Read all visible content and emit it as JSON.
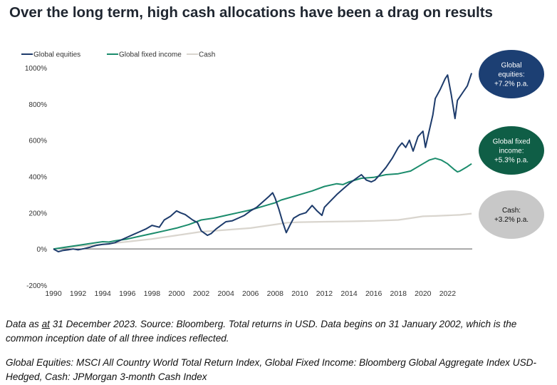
{
  "title": "Over the long term, high cash allocations have been a drag on results",
  "colors": {
    "equities": "#1d3b6b",
    "fixed_income": "#1b8c6c",
    "cash": "#d9d5ce",
    "equities_bubble": "#1c3f73",
    "fixed_income_bubble": "#0f5e46",
    "cash_bubble": "#c8c8c8",
    "axis_text": "#333333",
    "zero_line": "#555555"
  },
  "bubbles": [
    {
      "id": "equities",
      "line1": "Global",
      "line2": "equities:",
      "line3": "+7.2% p.a."
    },
    {
      "id": "fixed_income",
      "line1": "Global fixed",
      "line2": "income:",
      "line3": "+5.3% p.a."
    },
    {
      "id": "cash",
      "line1": "Cash:",
      "line2": "+3.2% p.a.",
      "line3": ""
    }
  ],
  "notes": {
    "note1_pre": "Data as ",
    "note1_at": "at",
    "note1_post": " 31 December 2023. Source: Bloomberg. Total returns in USD. Data begins on 31 January 2002, which is the common inception date of all three indices reflected.",
    "note2": "Global Equities: MSCI All Country World Total Return Index, Global Fixed Income: Bloomberg Global Aggregate Index USD-Hedged, Cash: JPMorgan 3-month Cash Index"
  },
  "chart_data": {
    "type": "line",
    "title": "Over the long term, high cash allocations have been a drag on results",
    "xlabel": "",
    "ylabel": "",
    "xlim": [
      1990,
      2024
    ],
    "ylim": [
      -200,
      1000
    ],
    "x_ticks": [
      "1990",
      "1992",
      "1994",
      "1996",
      "1998",
      "2000",
      "2002",
      "2004",
      "2006",
      "2008",
      "2010",
      "2012",
      "2014",
      "2016",
      "2018",
      "2020",
      "2022"
    ],
    "y_ticks": [
      "1000%",
      "800%",
      "600%",
      "400%",
      "200%",
      "0%",
      "-200%"
    ],
    "y_tick_values": [
      1000,
      800,
      600,
      400,
      200,
      0,
      -200
    ],
    "legend_position": "top-left",
    "series": [
      {
        "name": "Global equities",
        "x": [
          1990.0,
          1990.4,
          1990.8,
          1991.2,
          1991.6,
          1992.0,
          1992.5,
          1993.0,
          1993.5,
          1994.0,
          1994.5,
          1995.0,
          1995.5,
          1996.0,
          1996.5,
          1997.0,
          1997.5,
          1998.0,
          1998.6,
          1999.0,
          1999.5,
          2000.0,
          2000.3,
          2000.7,
          2001.0,
          2001.3,
          2001.7,
          2002.0,
          2002.5,
          2002.8,
          2003.2,
          2003.6,
          2004.0,
          2004.5,
          2005.0,
          2005.5,
          2006.0,
          2006.5,
          2007.0,
          2007.5,
          2007.8,
          2008.0,
          2008.3,
          2008.6,
          2008.9,
          2009.2,
          2009.5,
          2010.0,
          2010.5,
          2011.0,
          2011.4,
          2011.8,
          2012.0,
          2012.5,
          2013.0,
          2013.5,
          2014.0,
          2014.5,
          2015.0,
          2015.4,
          2015.8,
          2016.1,
          2016.5,
          2017.0,
          2017.5,
          2018.0,
          2018.3,
          2018.6,
          2018.9,
          2019.2,
          2019.6,
          2020.0,
          2020.2,
          2020.4,
          2020.8,
          2021.0,
          2021.4,
          2021.8,
          2022.0,
          2022.3,
          2022.6,
          2022.8,
          2023.0,
          2023.3,
          2023.6,
          2023.95
        ],
        "values": [
          0,
          -15,
          -8,
          -5,
          0,
          -5,
          2,
          10,
          20,
          25,
          28,
          35,
          50,
          65,
          80,
          95,
          110,
          130,
          120,
          160,
          180,
          210,
          200,
          190,
          175,
          160,
          145,
          100,
          75,
          85,
          110,
          130,
          150,
          155,
          170,
          185,
          210,
          230,
          260,
          290,
          310,
          280,
          220,
          150,
          90,
          130,
          170,
          190,
          200,
          240,
          210,
          185,
          230,
          265,
          300,
          330,
          360,
          385,
          410,
          380,
          370,
          380,
          410,
          450,
          500,
          560,
          585,
          560,
          600,
          540,
          620,
          650,
          560,
          620,
          740,
          830,
          880,
          940,
          960,
          850,
          720,
          820,
          840,
          870,
          900,
          970
        ]
      },
      {
        "name": "Global fixed income",
        "x": [
          1990.0,
          1991.0,
          1992.0,
          1993.0,
          1994.0,
          1994.5,
          1995.0,
          1996.0,
          1997.0,
          1998.0,
          1999.0,
          2000.0,
          2001.0,
          2002.0,
          2003.0,
          2004.0,
          2005.0,
          2006.0,
          2007.0,
          2008.0,
          2008.5,
          2009.0,
          2010.0,
          2011.0,
          2012.0,
          2013.0,
          2013.5,
          2014.0,
          2015.0,
          2016.0,
          2017.0,
          2018.0,
          2019.0,
          2020.0,
          2020.5,
          2021.0,
          2021.5,
          2022.0,
          2022.5,
          2022.8,
          2023.0,
          2023.5,
          2023.95
        ],
        "values": [
          0,
          10,
          20,
          30,
          40,
          38,
          45,
          55,
          70,
          85,
          100,
          115,
          135,
          160,
          170,
          185,
          200,
          215,
          235,
          255,
          270,
          280,
          300,
          320,
          345,
          360,
          355,
          370,
          390,
          395,
          410,
          415,
          430,
          470,
          490,
          500,
          490,
          470,
          440,
          425,
          430,
          450,
          470
        ]
      },
      {
        "name": "Cash",
        "x": [
          1990,
          1992,
          1994,
          1996,
          1998,
          2000,
          2002,
          2004,
          2006,
          2008,
          2009,
          2010,
          2012,
          2014,
          2016,
          2018,
          2019,
          2020,
          2021,
          2022,
          2023,
          2023.95
        ],
        "values": [
          0,
          15,
          25,
          40,
          55,
          75,
          95,
          105,
          115,
          135,
          145,
          148,
          150,
          152,
          155,
          160,
          170,
          180,
          182,
          185,
          188,
          195
        ]
      }
    ]
  }
}
